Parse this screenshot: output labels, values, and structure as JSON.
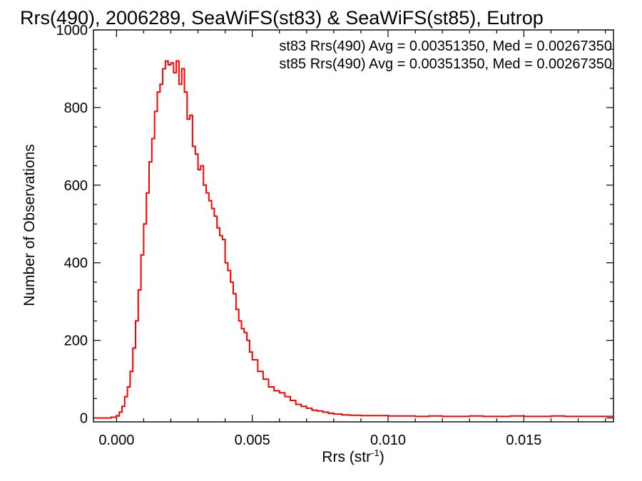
{
  "chart_data": {
    "type": "line",
    "title": "Rrs(490), 2006289, SeaWiFS(st83) & SeaWiFS(st85), Eutrop",
    "xlabel": "Rrs (str",
    "xlabel_sup": "-1",
    "xlabel_close": ")",
    "ylabel": "Number of Observations",
    "xlim": [
      -0.00085,
      0.0183
    ],
    "ylim": [
      -10,
      1000
    ],
    "xticks": [
      {
        "value": 0.0,
        "label": "0.000"
      },
      {
        "value": 0.005,
        "label": "0.005"
      },
      {
        "value": 0.01,
        "label": "0.010"
      },
      {
        "value": 0.015,
        "label": "0.015"
      }
    ],
    "yticks": [
      {
        "value": 0,
        "label": "0"
      },
      {
        "value": 200,
        "label": "200"
      },
      {
        "value": 400,
        "label": "400"
      },
      {
        "value": 600,
        "label": "600"
      },
      {
        "value": 800,
        "label": "800"
      },
      {
        "value": 1000,
        "label": "1000"
      }
    ],
    "grid": false,
    "legend": "top-right",
    "annotations": [
      {
        "text": "st83 Rrs(490) Avg = 0.00351350, Med = 0.00267350",
        "color": "#000000"
      },
      {
        "text": "st85 Rrs(490) Avg = 0.00351350, Med = 0.00267350",
        "color": "#ff0000"
      }
    ],
    "series": [
      {
        "color": "#ff0000",
        "x": [
          -0.0008,
          -0.0006,
          -0.0004,
          -0.0002,
          0.0,
          0.0001,
          0.0002,
          0.0003,
          0.0004,
          0.0005,
          0.0006,
          0.0007,
          0.0008,
          0.0009,
          0.001,
          0.0011,
          0.0012,
          0.0013,
          0.0014,
          0.0015,
          0.0016,
          0.0017,
          0.0018,
          0.0019,
          0.002,
          0.0021,
          0.0022,
          0.0023,
          0.0024,
          0.0025,
          0.0026,
          0.0027,
          0.0028,
          0.0029,
          0.003,
          0.0031,
          0.0032,
          0.0033,
          0.0034,
          0.0035,
          0.0036,
          0.0037,
          0.0038,
          0.0039,
          0.004,
          0.0041,
          0.0042,
          0.0043,
          0.0044,
          0.0045,
          0.0046,
          0.0047,
          0.0048,
          0.0049,
          0.005,
          0.0052,
          0.0054,
          0.0056,
          0.0058,
          0.006,
          0.0062,
          0.0064,
          0.0066,
          0.0068,
          0.007,
          0.0072,
          0.0074,
          0.0076,
          0.0078,
          0.008,
          0.0083,
          0.0086,
          0.009,
          0.0095,
          0.01,
          0.0105,
          0.011,
          0.0115,
          0.012,
          0.0125,
          0.013,
          0.0135,
          0.014,
          0.0145,
          0.015,
          0.0155,
          0.016,
          0.0165,
          0.017,
          0.0175,
          0.018
        ],
        "y": [
          0,
          0,
          0,
          2,
          5,
          15,
          30,
          55,
          80,
          120,
          180,
          250,
          330,
          420,
          500,
          580,
          660,
          720,
          790,
          840,
          860,
          900,
          920,
          910,
          915,
          890,
          920,
          860,
          900,
          840,
          770,
          780,
          700,
          680,
          640,
          650,
          600,
          580,
          560,
          540,
          520,
          490,
          470,
          460,
          400,
          380,
          350,
          320,
          280,
          250,
          230,
          220,
          200,
          170,
          150,
          120,
          100,
          80,
          70,
          65,
          55,
          45,
          35,
          30,
          25,
          20,
          18,
          15,
          12,
          10,
          8,
          7,
          6,
          6,
          5,
          5,
          4,
          5,
          4,
          4,
          5,
          4,
          4,
          5,
          4,
          4,
          5,
          4,
          4,
          4,
          4
        ]
      }
    ]
  }
}
